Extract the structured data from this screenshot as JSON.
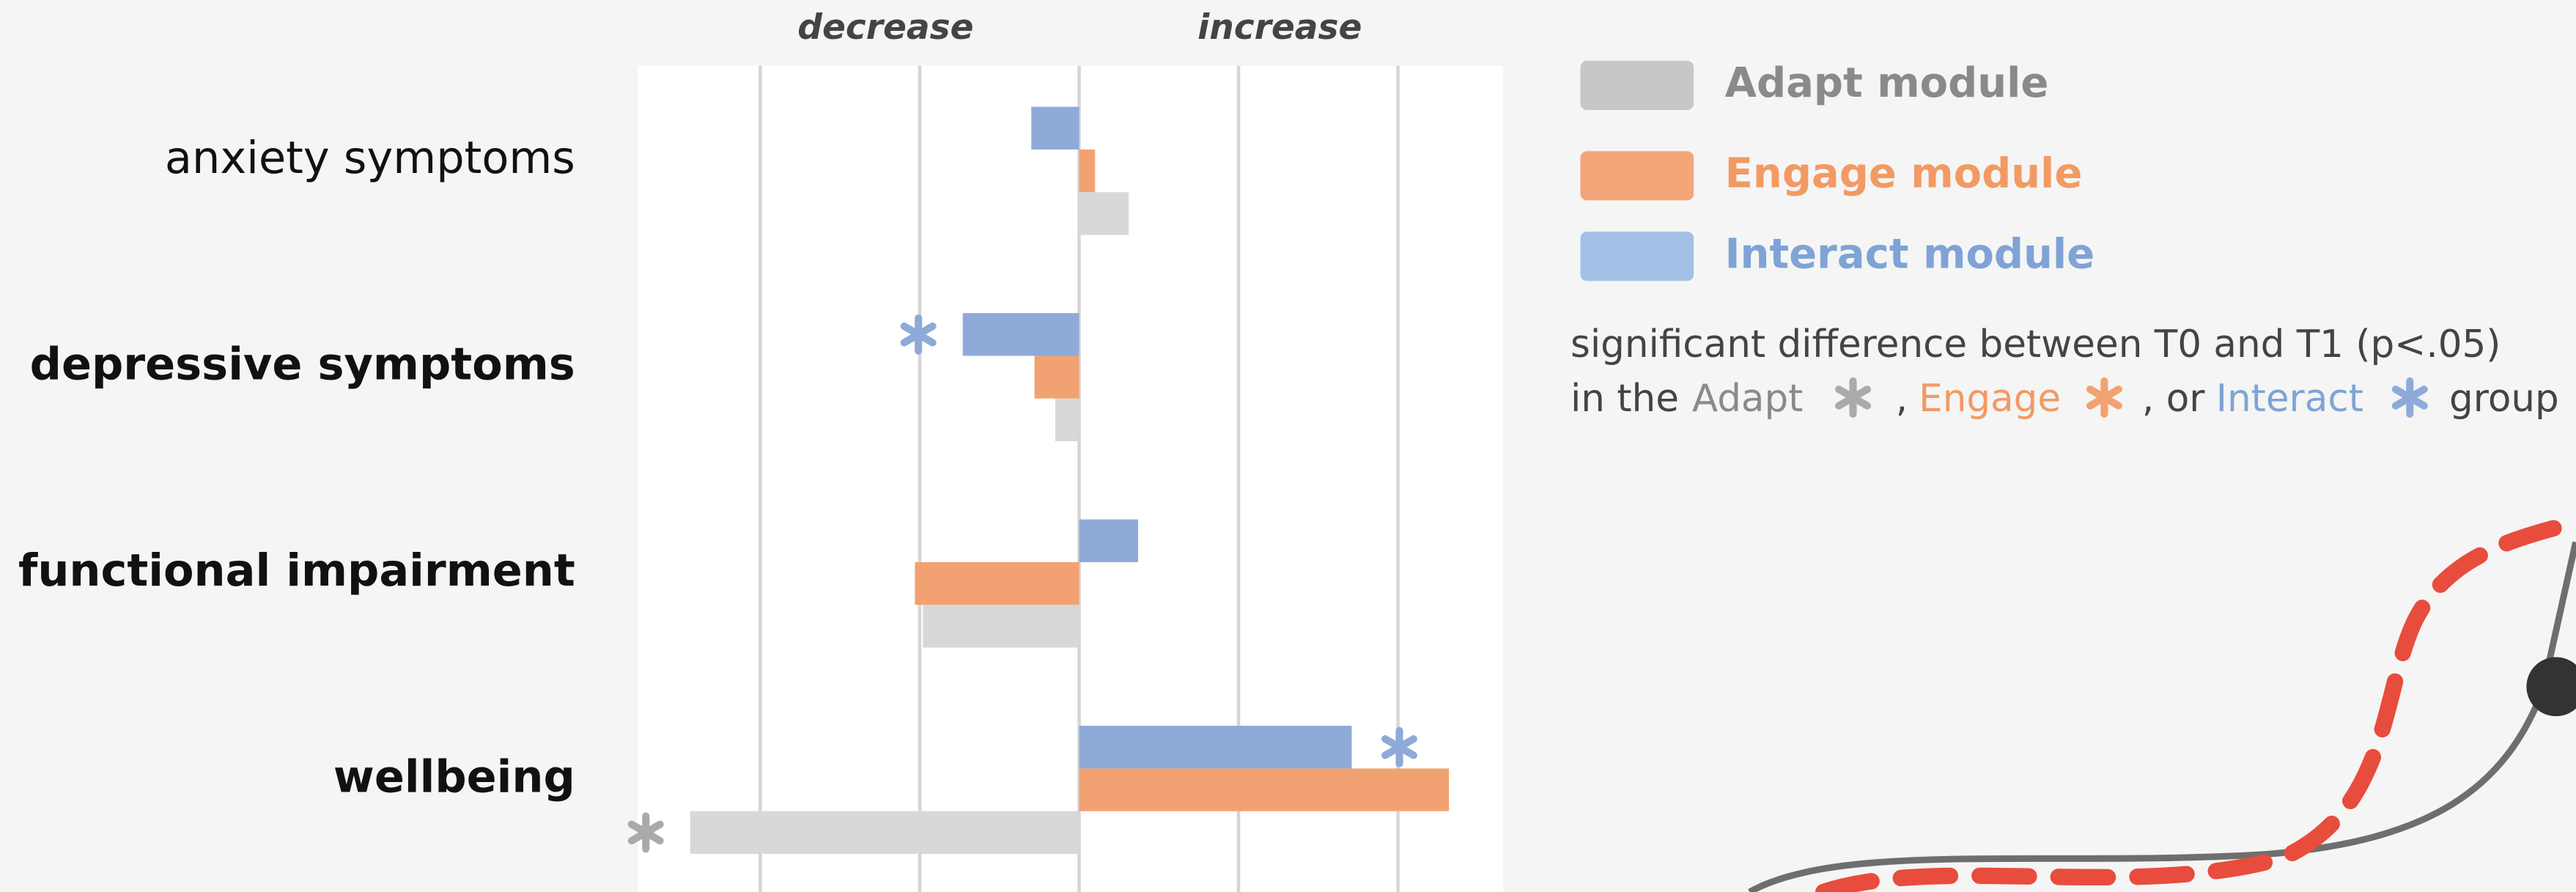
{
  "chart_data": {
    "type": "hbar",
    "direction_labels": {
      "left": "decrease",
      "right": "increase"
    },
    "categories": [
      "anxiety symptoms",
      "depressive symptoms",
      "functional impairment",
      "wellbeing"
    ],
    "category_bold": [
      false,
      true,
      true,
      true
    ],
    "series": [
      {
        "name": "Adapt module",
        "color": "#d8d8d9",
        "legend_color": "#c8c6c6",
        "text_color": "#8a8a8a",
        "values": [
          0.31,
          -0.15,
          -0.98,
          -2.44
        ],
        "significant": [
          false,
          false,
          false,
          true
        ]
      },
      {
        "name": "Engage module",
        "color": "#f2a272",
        "legend_color": "#f5a57a",
        "text_color": "#f29a64",
        "values": [
          0.1,
          -0.28,
          -1.03,
          2.32
        ],
        "significant": [
          false,
          false,
          false,
          false
        ]
      },
      {
        "name": "Interact module",
        "color": "#8eaad8",
        "legend_color": "#a3bfe5",
        "text_color": "#7fa3d6",
        "values": [
          -0.3,
          -0.73,
          0.37,
          1.71
        ],
        "significant": [
          false,
          true,
          false,
          true
        ]
      }
    ],
    "xlim": [
      -2.77,
      2.66
    ],
    "xgrid": [
      -2,
      -1,
      0,
      1,
      2
    ],
    "note": {
      "line1": "significant difference between T0 and T1 (p<.05)",
      "line2": [
        "in the",
        "Adapt",
        ",",
        "Engage",
        ", or",
        "Interact",
        "group"
      ]
    }
  }
}
